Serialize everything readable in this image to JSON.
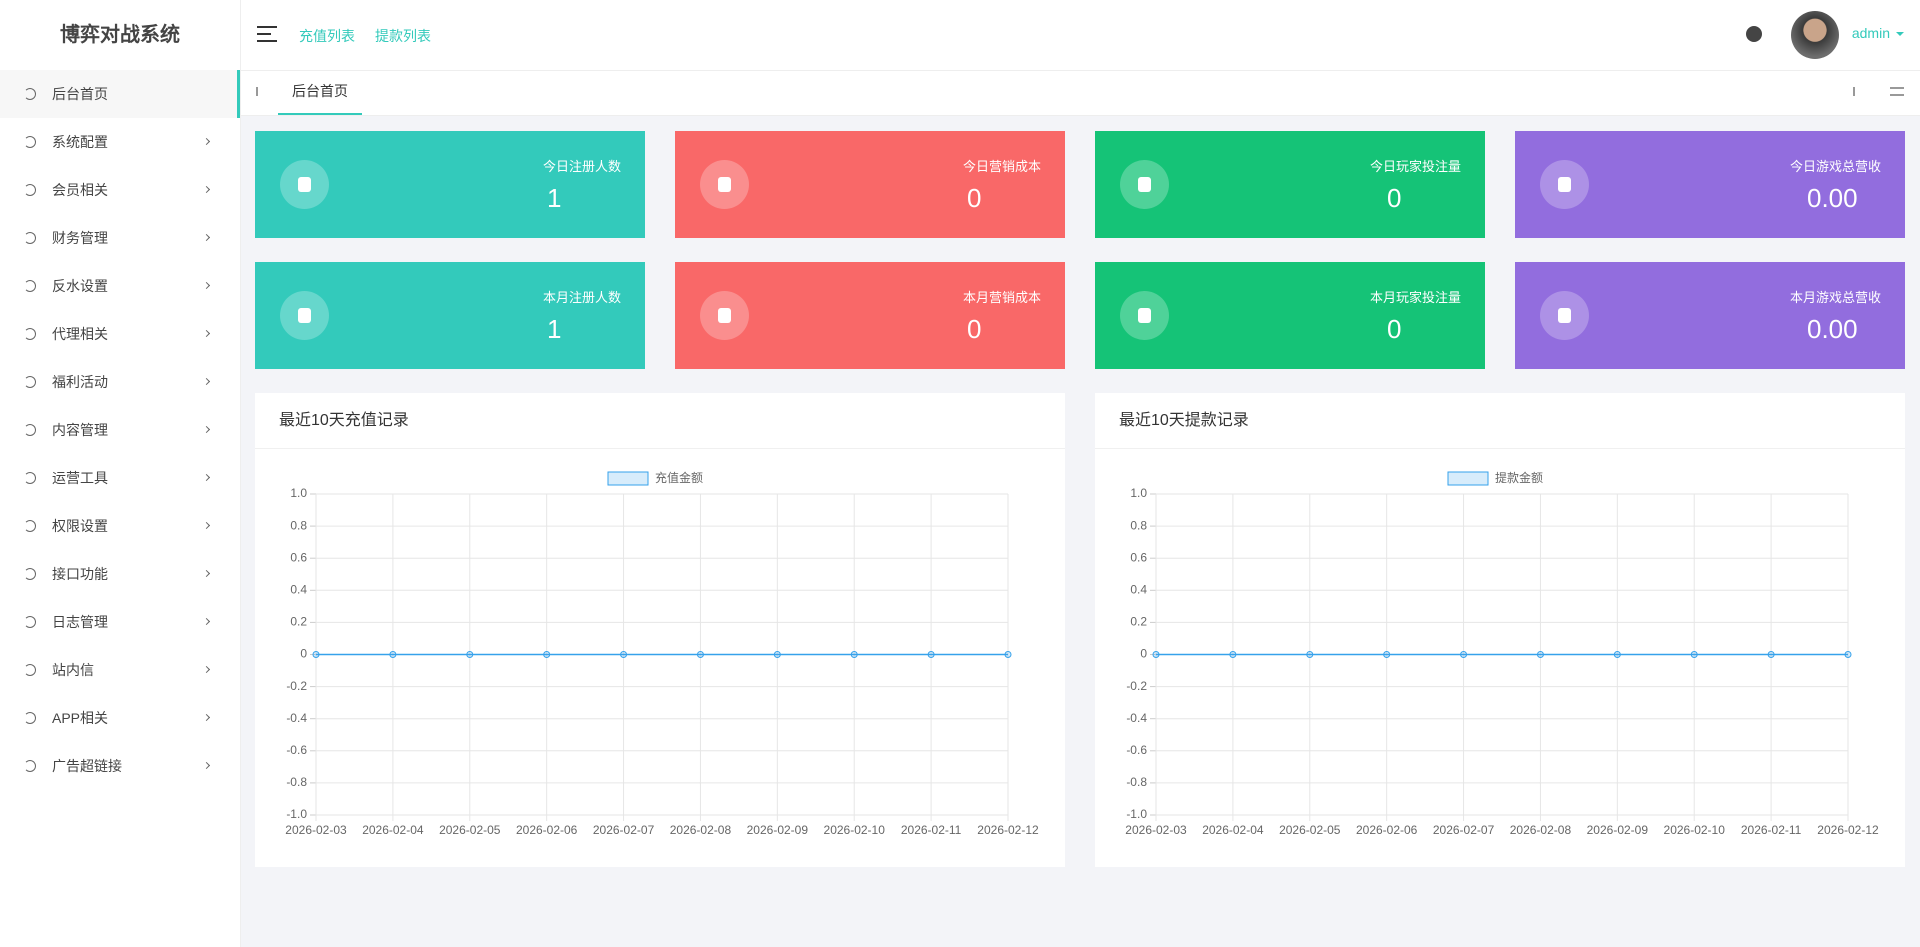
{
  "sidebar": {
    "title": "博弈对战系统",
    "menu": [
      "后台首页",
      "系统配置",
      "会员相关",
      "财务管理",
      "反水设置",
      "代理相关",
      "福利活动",
      "内容管理",
      "运营工具",
      "权限设置",
      "接口功能",
      "日志管理",
      "站内信",
      "APP相关",
      "广告超链接"
    ]
  },
  "header": {
    "links": [
      "充值列表",
      "提款列表"
    ],
    "user": "admin"
  },
  "tabs": [
    "后台首页"
  ],
  "stats": [
    {
      "label": "今日注册人数",
      "value": 1,
      "color": "#33cabb"
    },
    {
      "label": "今日营销成本",
      "value": 0,
      "color": "#f96868"
    },
    {
      "label": "今日玩家投注量",
      "value": 0,
      "color": "#15c377"
    },
    {
      "label": "今日游戏总营收",
      "value": "0.00",
      "color": "#926dde"
    },
    {
      "label": "本月注册人数",
      "value": 1,
      "color": "#33cabb"
    },
    {
      "label": "本月营销成本",
      "value": 0,
      "color": "#f96868"
    },
    {
      "label": "本月玩家投注量",
      "value": 0,
      "color": "#15c377"
    },
    {
      "label": "本月游戏总营收",
      "value": "0.00",
      "color": "#926dde"
    }
  ],
  "charts": [
    {
      "type": "line",
      "title": "最近10天充值记录",
      "categories": [
        "2026-02-03",
        "2026-02-04",
        "2026-02-05",
        "2026-02-06",
        "2026-02-07",
        "2026-02-08",
        "2026-02-09",
        "2026-02-10",
        "2026-02-11",
        "2026-02-12"
      ],
      "series": [
        {
          "name": "充值金额",
          "color": "#36a2eb",
          "values": [
            0,
            0,
            0,
            0,
            0,
            0,
            0,
            0,
            0,
            0
          ]
        }
      ],
      "ylim": [
        -1,
        1
      ],
      "yticks": [
        {
          "value": -1,
          "label": "-1.0"
        },
        -0.8,
        -0.6,
        -0.4,
        -0.2,
        0,
        0.2,
        0.4,
        0.6,
        0.8,
        {
          "value": 1,
          "label": "1.0"
        }
      ],
      "grid": true
    },
    {
      "type": "line",
      "title": "最近10天提款记录",
      "categories": [
        "2026-02-03",
        "2026-02-04",
        "2026-02-05",
        "2026-02-06",
        "2026-02-07",
        "2026-02-08",
        "2026-02-09",
        "2026-02-10",
        "2026-02-11",
        "2026-02-12"
      ],
      "series": [
        {
          "name": "提款金额",
          "color": "#36a2eb",
          "values": [
            0,
            0,
            0,
            0,
            0,
            0,
            0,
            0,
            0,
            0
          ]
        }
      ],
      "ylim": [
        -1,
        1
      ],
      "yticks": [
        {
          "value": -1,
          "label": "-1.0"
        },
        -0.8,
        -0.6,
        -0.4,
        -0.2,
        0,
        0.2,
        0.4,
        0.6,
        0.8,
        {
          "value": 1,
          "label": "1.0"
        }
      ],
      "grid": true
    }
  ]
}
